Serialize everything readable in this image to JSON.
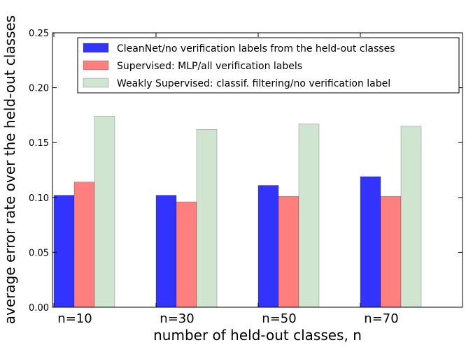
{
  "chart_data": {
    "type": "bar",
    "title": "",
    "xlabel": "number of held-out classes, n",
    "ylabel": "average error rate over the held-out classes",
    "ylim": [
      0,
      0.25
    ],
    "yticks": [
      "0.00",
      "0.05",
      "0.10",
      "0.15",
      "0.20",
      "0.25"
    ],
    "categories": [
      "n=10",
      "n=30",
      "n=50",
      "n=70"
    ],
    "grid": false,
    "legend_position": "top-right",
    "series": [
      {
        "name": "CleanNet/no verification labels from the held-out classes",
        "color": "#3333ff",
        "opacity": 1.0,
        "values": [
          0.102,
          0.102,
          0.111,
          0.119
        ]
      },
      {
        "name": "Supervised: MLP/all verification labels",
        "color": "#ff7f7f",
        "opacity": 1.0,
        "values": [
          0.114,
          0.096,
          0.101,
          0.101
        ]
      },
      {
        "name": "Weakly Supervised: classif. filtering/no verification label",
        "color": "#cfe5cf",
        "opacity": 1.0,
        "values": [
          0.174,
          0.162,
          0.167,
          0.165
        ]
      }
    ]
  }
}
